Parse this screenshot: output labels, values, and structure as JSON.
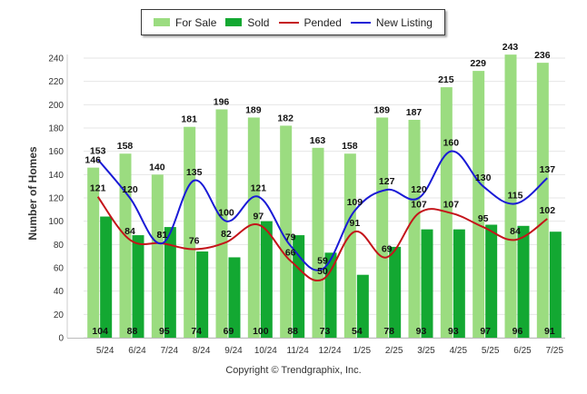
{
  "legend": {
    "for_sale": "For Sale",
    "sold": "Sold",
    "pended": "Pended",
    "new_listing": "New Listing"
  },
  "footer": {
    "copyright": "Copyright © Trendgraphix, Inc."
  },
  "colors": {
    "for_sale": "#9bdc80",
    "sold": "#13a832",
    "pended": "#c4141a",
    "new_listing": "#1a1ad6",
    "grid": "#e6e6e6"
  },
  "chart_data": {
    "type": "bar",
    "ylabel": "Number of Homes",
    "xlabel": "",
    "ylim": [
      0,
      240
    ],
    "yticks": [
      0,
      20,
      40,
      60,
      80,
      100,
      120,
      140,
      160,
      180,
      200,
      220,
      240
    ],
    "grid": true,
    "legend_position": "top-center",
    "categories": [
      "5/24",
      "6/24",
      "7/24",
      "8/24",
      "9/24",
      "10/24",
      "11/24",
      "12/24",
      "1/25",
      "2/25",
      "3/25",
      "4/25",
      "5/25",
      "6/25",
      "7/25"
    ],
    "series": [
      {
        "name": "For Sale",
        "type": "bar",
        "values": [
          146,
          158,
          140,
          181,
          196,
          189,
          182,
          163,
          158,
          189,
          187,
          215,
          229,
          243,
          236
        ]
      },
      {
        "name": "Sold",
        "type": "bar",
        "values": [
          104,
          88,
          95,
          74,
          69,
          100,
          88,
          73,
          54,
          78,
          93,
          93,
          97,
          96,
          91
        ]
      },
      {
        "name": "Pended",
        "type": "line",
        "values": [
          121,
          84,
          81,
          76,
          82,
          97,
          66,
          50,
          91,
          69,
          107,
          107,
          95,
          84,
          102
        ]
      },
      {
        "name": "New Listing",
        "type": "line",
        "values": [
          153,
          120,
          81,
          135,
          100,
          121,
          79,
          59,
          109,
          127,
          120,
          160,
          130,
          115,
          137
        ]
      }
    ]
  }
}
